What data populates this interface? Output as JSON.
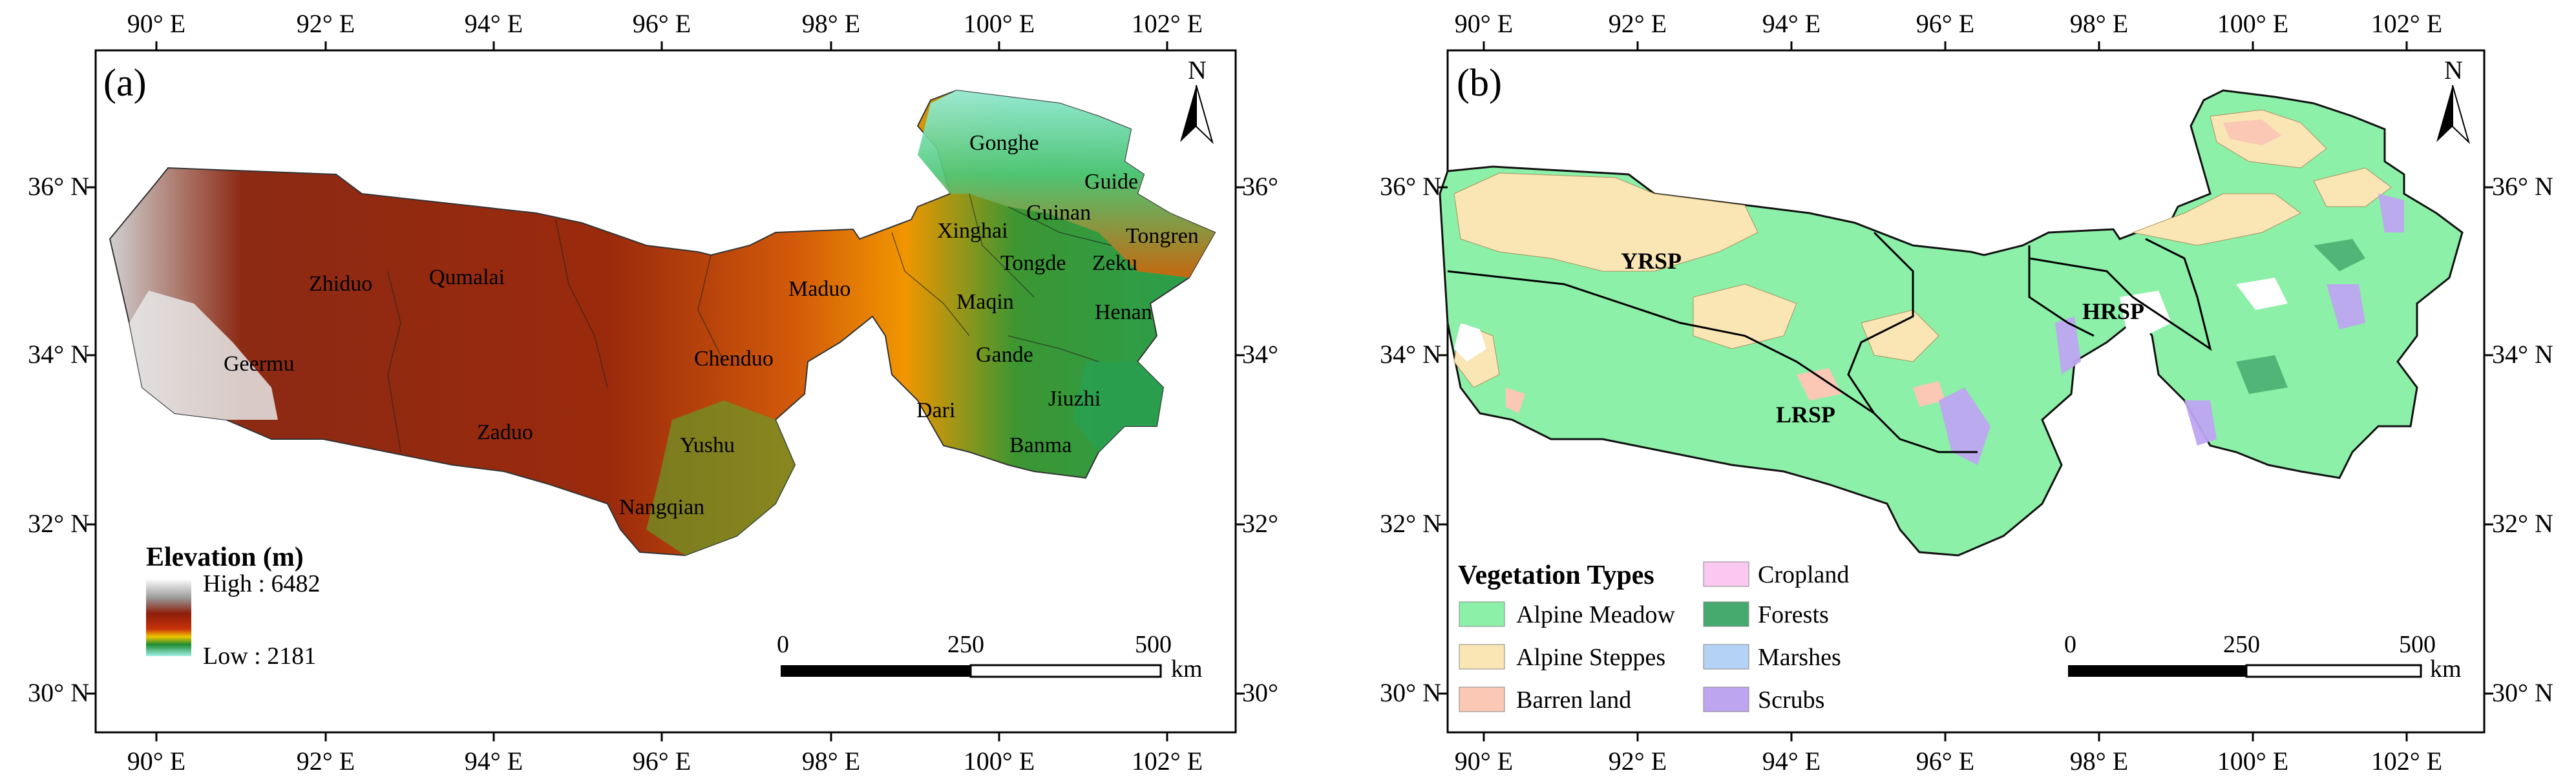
{
  "panel_a": {
    "label": "(a)",
    "north": "N",
    "legend": {
      "title": "Elevation (m)",
      "high": "High : 6482",
      "low": "Low : 2181"
    },
    "scalebar": {
      "labels": [
        "0",
        "250",
        "500"
      ],
      "unit": "km"
    },
    "places": [
      "Gonghe",
      "Guide",
      "Guinan",
      "Xinghai",
      "Tongren",
      "Tongde",
      "Zeku",
      "Maqin",
      "Henan",
      "Zhiduo",
      "Qumalai",
      "Maduo",
      "Geermu",
      "Chenduo",
      "Gande",
      "Jiuzhi",
      "Dari",
      "Zaduo",
      "Yushu",
      "Banma",
      "Nangqian"
    ]
  },
  "panel_b": {
    "label": "(b)",
    "north": "N",
    "legend": {
      "title": "Vegetation Types",
      "items": [
        {
          "label": "Alpine Meadow",
          "color": "#8cf0a8"
        },
        {
          "label": "Alpine Steppes",
          "color": "#fae6b4"
        },
        {
          "label": "Barren land",
          "color": "#fac8b4"
        },
        {
          "label": "Cropland",
          "color": "#fac8f0"
        },
        {
          "label": "Forests",
          "color": "#46aa6e"
        },
        {
          "label": "Marshes",
          "color": "#b4d2f5"
        },
        {
          "label": "Scrubs",
          "color": "#bea5f0"
        }
      ]
    },
    "scalebar": {
      "labels": [
        "0",
        "250",
        "500"
      ],
      "unit": "km"
    },
    "regions": [
      "YRSP",
      "LRSP",
      "HRSP"
    ]
  },
  "axes": {
    "lon_labels": [
      "90° E",
      "92° E",
      "94° E",
      "96° E",
      "98° E",
      "100° E",
      "102° E"
    ],
    "lat_labels_left": [
      "36° N",
      "34° N",
      "32° N",
      "30° N"
    ],
    "lat_labels_right_a": [
      "36°",
      "34°",
      "32°",
      "30°"
    ],
    "lat_labels_right_b": [
      "36° N",
      "34° N",
      "32° N",
      "30° N"
    ]
  },
  "colors": {
    "elev_high": "#ffffff",
    "elev_mid_high": "#8c1e0a",
    "elev_mid": "#c83c0a",
    "elev_orange": "#f08c00",
    "elev_green": "#1e8c32",
    "elev_low": "#a0f0e6"
  }
}
